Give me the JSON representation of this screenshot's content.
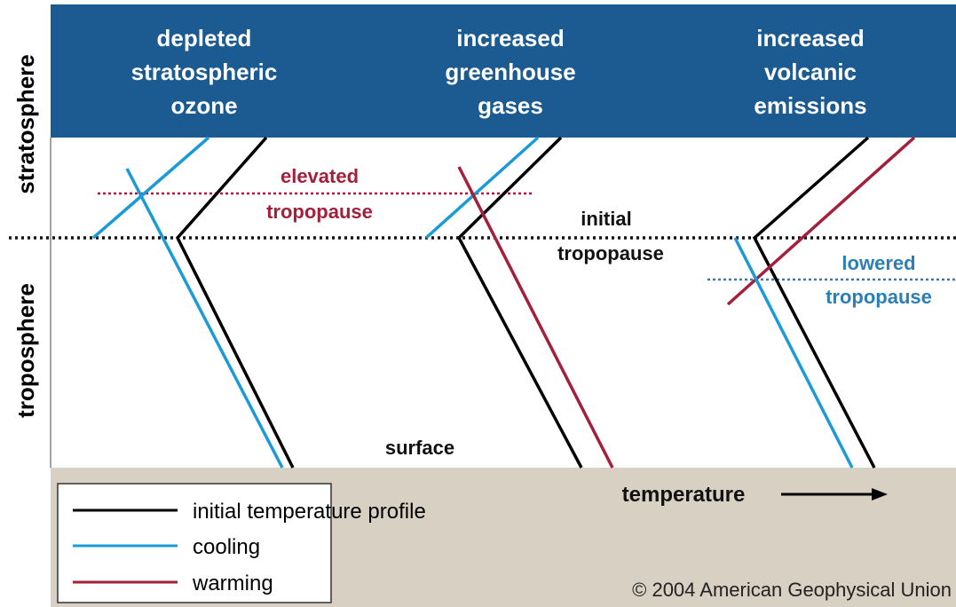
{
  "headers": [
    [
      "depleted",
      "stratospheric",
      "ozone"
    ],
    [
      "increased",
      "greenhouse",
      "gases"
    ],
    [
      "increased",
      "volcanic",
      "emissions"
    ]
  ],
  "layers": {
    "stratosphere": "stratosphere",
    "troposphere": "troposphere"
  },
  "annotations": {
    "elevated": [
      "elevated",
      "tropopause"
    ],
    "initial": [
      "initial",
      "tropopause"
    ],
    "lowered": [
      "lowered",
      "tropopause"
    ],
    "surface": "surface",
    "temperature": "temperature"
  },
  "legend": [
    "initial temperature profile",
    "cooling",
    "warming"
  ],
  "copyright": "© 2004 American Geophysical Union"
}
